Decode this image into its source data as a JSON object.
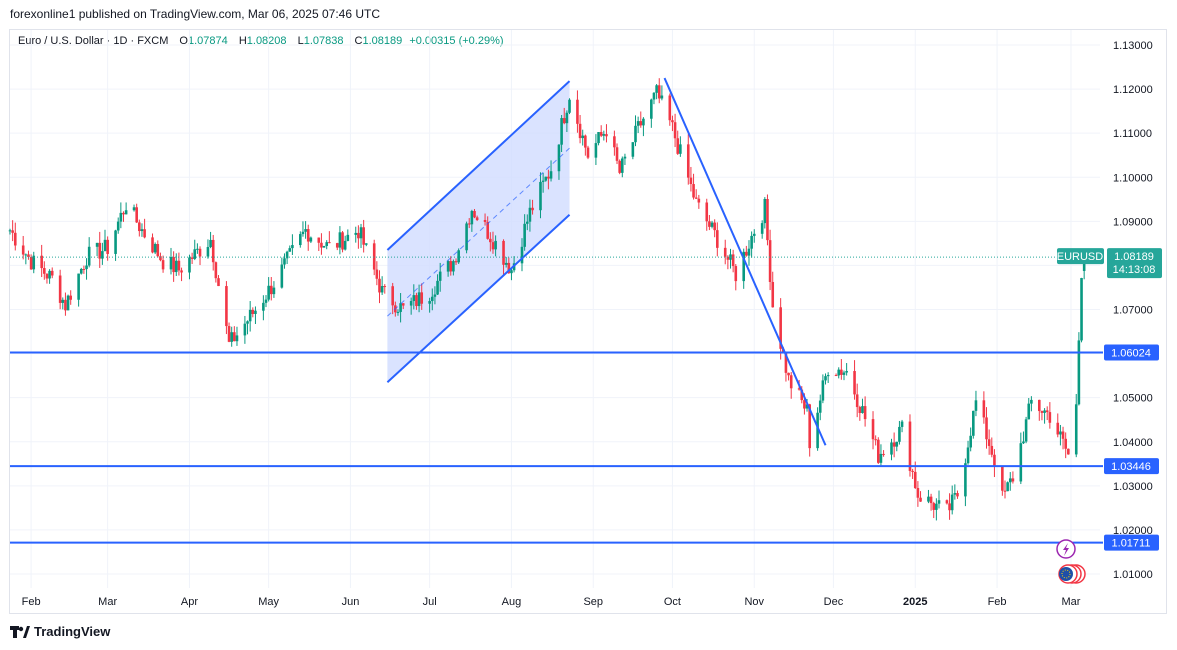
{
  "header": {
    "published": "forexonline1 published on TradingView.com, Mar 06, 2025 07:46 UTC"
  },
  "legend": {
    "symbol": "Euro / U.S. Dollar · 1D · FXCM",
    "o_label": "O",
    "o": "1.07874",
    "h_label": "H",
    "h": "1.08208",
    "l_label": "L",
    "l": "1.07838",
    "c_label": "C",
    "c": "1.08189",
    "change": "+0.00315 (+0.29%)"
  },
  "footer": {
    "brand": "TradingView"
  },
  "colors": {
    "up": "#089981",
    "down": "#f23645",
    "levels": "#2962ff",
    "channel_fill": "#d1dcff",
    "price_tag": "#26a69a"
  },
  "chart_data": {
    "type": "candlestick",
    "ylim": [
      1.005,
      1.133
    ],
    "y_ticks": [
      "1.01000",
      "1.02000",
      "1.03000",
      "1.04000",
      "1.05000",
      "1.06000",
      "1.07000",
      "1.08000",
      "1.09000",
      "1.10000",
      "1.11000",
      "1.12000",
      "1.13000"
    ],
    "x_ticks": [
      "Feb",
      "Mar",
      "Apr",
      "May",
      "Jun",
      "Jul",
      "Aug",
      "Sep",
      "Oct",
      "Nov",
      "Dec",
      "2025",
      "Feb",
      "Mar"
    ],
    "x_range": [
      "2024-01-24",
      "2025-03-12"
    ],
    "close_path": [
      [
        "2024-01-24",
        1.088
      ],
      [
        "2024-02-01",
        1.081
      ],
      [
        "2024-02-09",
        1.077
      ],
      [
        "2024-02-14",
        1.071
      ],
      [
        "2024-02-22",
        1.082
      ],
      [
        "2024-03-01",
        1.084
      ],
      [
        "2024-03-08",
        1.094
      ],
      [
        "2024-03-14",
        1.088
      ],
      [
        "2024-03-22",
        1.081
      ],
      [
        "2024-03-28",
        1.079
      ],
      [
        "2024-04-09",
        1.086
      ],
      [
        "2024-04-16",
        1.062
      ],
      [
        "2024-04-26",
        1.07
      ],
      [
        "2024-05-03",
        1.076
      ],
      [
        "2024-05-15",
        1.088
      ],
      [
        "2024-05-24",
        1.084
      ],
      [
        "2024-06-04",
        1.088
      ],
      [
        "2024-06-13",
        1.074
      ],
      [
        "2024-06-21",
        1.07
      ],
      [
        "2024-07-01",
        1.074
      ],
      [
        "2024-07-10",
        1.081
      ],
      [
        "2024-07-17",
        1.093
      ],
      [
        "2024-07-26",
        1.085
      ],
      [
        "2024-08-01",
        1.079
      ],
      [
        "2024-08-08",
        1.092
      ],
      [
        "2024-08-16",
        1.102
      ],
      [
        "2024-08-23",
        1.119
      ],
      [
        "2024-08-30",
        1.105
      ],
      [
        "2024-09-06",
        1.111
      ],
      [
        "2024-09-11",
        1.101
      ],
      [
        "2024-09-18",
        1.111
      ],
      [
        "2024-09-25",
        1.119
      ],
      [
        "2024-10-01",
        1.111
      ],
      [
        "2024-10-10",
        1.094
      ],
      [
        "2024-10-18",
        1.086
      ],
      [
        "2024-10-25",
        1.078
      ],
      [
        "2024-11-01",
        1.088
      ],
      [
        "2024-11-05",
        1.093
      ],
      [
        "2024-11-08",
        1.071
      ],
      [
        "2024-11-14",
        1.054
      ],
      [
        "2024-11-21",
        1.047
      ],
      [
        "2024-11-22",
        1.04
      ],
      [
        "2024-11-29",
        1.057
      ],
      [
        "2024-12-06",
        1.056
      ],
      [
        "2024-12-12",
        1.047
      ],
      [
        "2024-12-18",
        1.037
      ],
      [
        "2024-12-27",
        1.043
      ],
      [
        "2025-01-02",
        1.028
      ],
      [
        "2025-01-10",
        1.025
      ],
      [
        "2025-01-13",
        1.024
      ],
      [
        "2025-01-17",
        1.028
      ],
      [
        "2025-01-24",
        1.049
      ],
      [
        "2025-01-31",
        1.036
      ],
      [
        "2025-02-03",
        1.027
      ],
      [
        "2025-02-07",
        1.032
      ],
      [
        "2025-02-14",
        1.049
      ],
      [
        "2025-02-21",
        1.046
      ],
      [
        "2025-02-28",
        1.037
      ],
      [
        "2025-03-03",
        1.048
      ],
      [
        "2025-03-05",
        1.079
      ],
      [
        "2025-03-06",
        1.0819
      ]
    ],
    "horizontal_levels": [
      1.06024,
      1.03446,
      1.01711
    ],
    "price_labels": [
      "1.06024",
      "1.03446",
      "1.01711"
    ],
    "current_price": {
      "symbol": "EURUSD",
      "price": "1.08189",
      "countdown": "14:13:08",
      "value": 1.08189
    },
    "channel": {
      "upper": [
        [
          "2024-06-15",
          1.0835
        ],
        [
          "2024-08-23",
          1.1218
        ]
      ],
      "lower": [
        [
          "2024-06-15",
          1.0535
        ],
        [
          "2024-08-23",
          1.0915
        ]
      ],
      "mid": [
        [
          "2024-06-15",
          1.0685
        ],
        [
          "2024-08-23",
          1.1066
        ]
      ]
    },
    "trendline": [
      [
        "2024-09-28",
        1.1225
      ],
      [
        "2024-11-28",
        1.0392
      ]
    ]
  }
}
